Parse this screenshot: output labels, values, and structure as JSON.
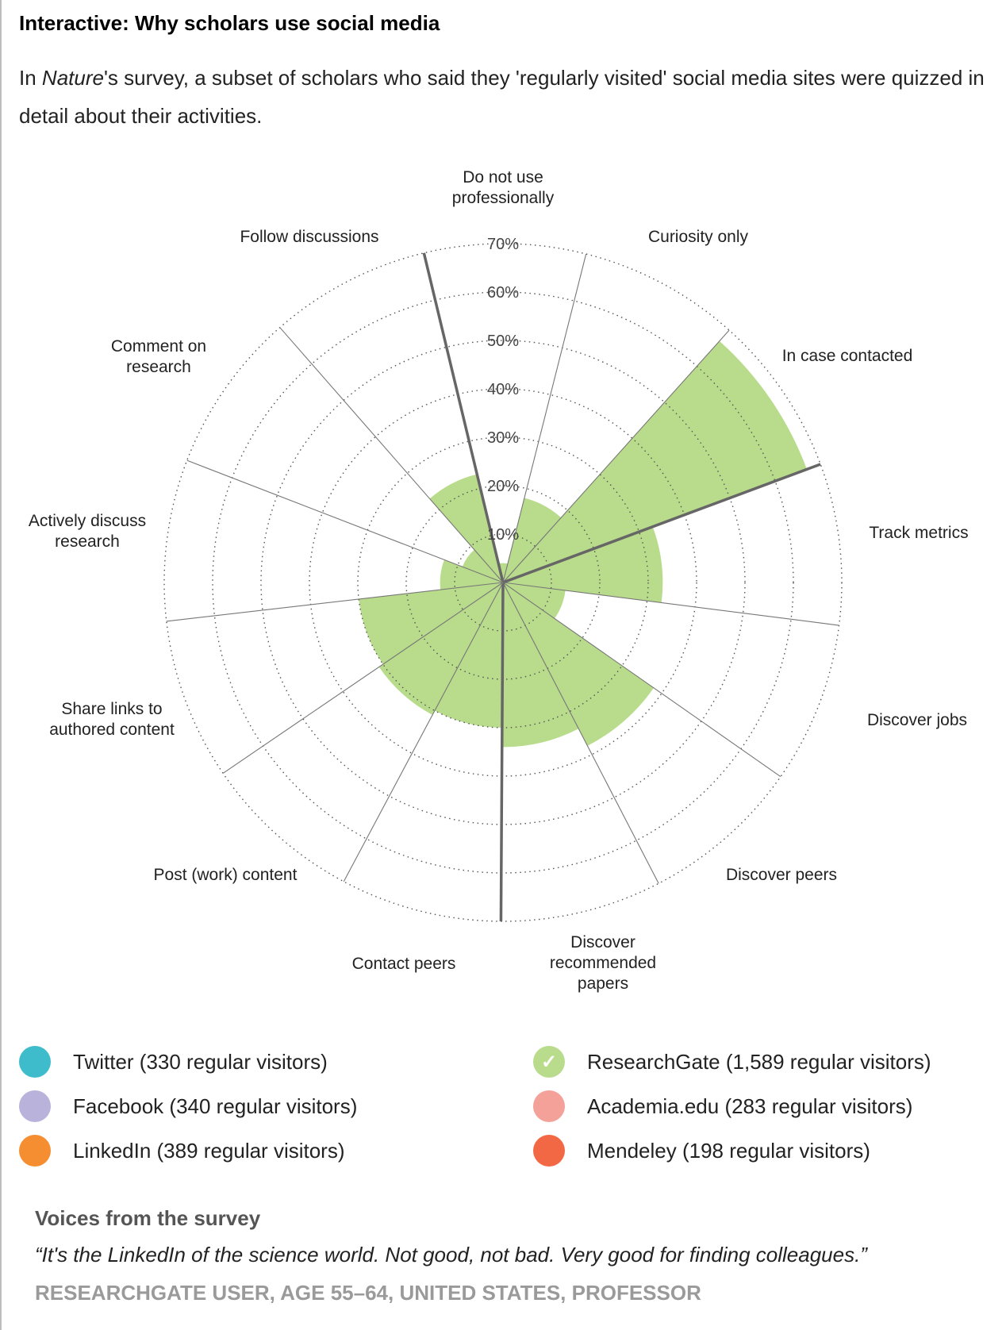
{
  "header": {
    "title": "Interactive: Why scholars use social media",
    "subtitle_pre": "In ",
    "subtitle_em": "Nature",
    "subtitle_post": "'s survey, a subset of scholars who said they 'regularly visited' social media sites were quizzed in detail about their activities."
  },
  "chart_data": {
    "type": "polar-area",
    "title": "",
    "radial_ticks": [
      "10%",
      "20%",
      "30%",
      "40%",
      "50%",
      "60%",
      "70%"
    ],
    "rlim": [
      0,
      70
    ],
    "selected_series": "ResearchGate",
    "categories": [
      "Do not use professionally",
      "Curiosity only",
      "In case contacted",
      "Track metrics",
      "Discover jobs",
      "Discover peers",
      "Discover recommended papers",
      "Contact peers",
      "Post (work) content",
      "Share links to authored content",
      "Actively discuss research",
      "Comment on research",
      "Follow discussions"
    ],
    "series": [
      {
        "name": "ResearchGate",
        "color": "#b9dc8c",
        "values": [
          4,
          18,
          67,
          33,
          13,
          38,
          34,
          30,
          31,
          30,
          13,
          9,
          23
        ]
      }
    ]
  },
  "legend": {
    "items": [
      {
        "label": "Twitter (330 regular visitors)",
        "color": "#3fbccc",
        "checked": false
      },
      {
        "label": "Facebook (340 regular visitors)",
        "color": "#b9b3dc",
        "checked": false
      },
      {
        "label": "LinkedIn (389 regular visitors)",
        "color": "#f58e30",
        "checked": false
      },
      {
        "label": "ResearchGate (1,589 regular visitors)",
        "color": "#b9dc8c",
        "checked": true
      },
      {
        "label": "Academia.edu (283 regular visitors)",
        "color": "#f4a19a",
        "checked": false
      },
      {
        "label": "Mendeley (198 regular visitors)",
        "color": "#f26844",
        "checked": false
      }
    ],
    "check_glyph": "✓"
  },
  "voices": {
    "heading": "Voices from the survey",
    "quote": "“It's the LinkedIn of the science world. Not good, not bad. Very good for finding colleagues.”",
    "attribution": "RESEARCHGATE USER, AGE 55–64, UNITED STATES, PROFESSOR"
  }
}
